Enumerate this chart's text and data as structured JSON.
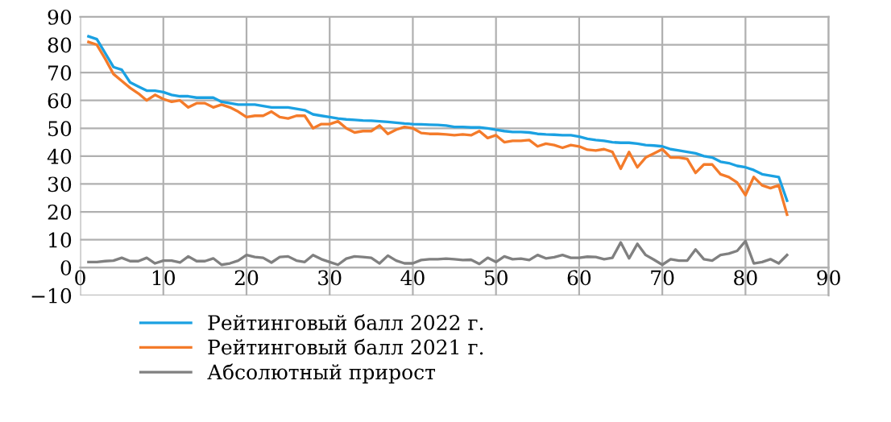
{
  "chart_data": {
    "type": "line",
    "x": [
      1,
      2,
      3,
      4,
      5,
      6,
      7,
      8,
      9,
      10,
      11,
      12,
      13,
      14,
      15,
      16,
      17,
      18,
      19,
      20,
      21,
      22,
      23,
      24,
      25,
      26,
      27,
      28,
      29,
      30,
      31,
      32,
      33,
      34,
      35,
      36,
      37,
      38,
      39,
      40,
      41,
      42,
      43,
      44,
      45,
      46,
      47,
      48,
      49,
      50,
      51,
      52,
      53,
      54,
      55,
      56,
      57,
      58,
      59,
      60,
      61,
      62,
      63,
      64,
      65,
      66,
      67,
      68,
      69,
      70,
      71,
      72,
      73,
      74,
      75,
      76,
      77,
      78,
      79,
      80,
      81,
      82,
      83,
      84,
      85
    ],
    "series": [
      {
        "name": "Рейтинговый балл 2022 г.",
        "color": "#1ba1e2",
        "values": [
          83,
          82,
          77,
          72,
          71,
          66.5,
          65,
          63.5,
          63.5,
          63,
          62,
          61.5,
          61.5,
          61,
          61,
          61,
          59.5,
          59,
          58.5,
          58.5,
          58.5,
          58,
          57.5,
          57.5,
          57.5,
          57,
          56.5,
          55,
          54.5,
          54,
          53.5,
          53.2,
          53,
          52.8,
          52.7,
          52.5,
          52.3,
          52,
          51.7,
          51.5,
          51.4,
          51.3,
          51.2,
          51,
          50.5,
          50.5,
          50.3,
          50.3,
          50,
          49.5,
          49,
          48.7,
          48.7,
          48.5,
          48,
          47.8,
          47.7,
          47.5,
          47.5,
          47,
          46.2,
          45.8,
          45.5,
          45,
          44.8,
          44.8,
          44.5,
          44,
          43.8,
          43.5,
          42.5,
          42,
          41.5,
          41,
          40,
          39.5,
          38,
          37.5,
          36.5,
          36,
          35,
          33.5,
          33,
          32.5,
          24
        ]
      },
      {
        "name": "Рейтинговый балл 2021 г.",
        "color": "#f47b2a",
        "values": [
          81,
          80,
          75,
          69.5,
          67,
          64.5,
          62.5,
          60,
          62,
          60.5,
          59.5,
          60,
          57.5,
          59,
          59,
          57.5,
          58.5,
          57.5,
          56,
          54,
          54.5,
          54.5,
          56,
          54,
          53.5,
          54.5,
          54.5,
          50,
          51.5,
          51.5,
          52.5,
          50,
          48.5,
          49,
          49,
          51,
          48,
          49.5,
          50.5,
          50,
          48.3,
          48,
          48,
          47.8,
          47.5,
          47.8,
          47.5,
          49,
          46.5,
          47.5,
          45,
          45.5,
          45.5,
          45.8,
          43.5,
          44.5,
          44,
          43,
          44,
          43.5,
          42.3,
          42,
          42.5,
          41.5,
          35.5,
          41.5,
          36,
          39.5,
          41,
          42.5,
          39.5,
          39.5,
          39,
          34,
          37,
          37,
          33.5,
          32.5,
          30.5,
          26,
          32.5,
          29.5,
          28.5,
          29.5,
          19
        ]
      },
      {
        "name": "Абсолютный прирост",
        "color": "#808080",
        "values": [
          2,
          2,
          2.3,
          2.5,
          3.5,
          2.3,
          2.3,
          3.5,
          1.5,
          2.5,
          2.5,
          1.8,
          4,
          2.3,
          2.3,
          3.3,
          1,
          1.5,
          2.5,
          4.5,
          3.8,
          3.5,
          1.8,
          3.8,
          4,
          2.5,
          2,
          4.5,
          3,
          2,
          1,
          3.2,
          4,
          3.8,
          3.5,
          1.5,
          4.3,
          2.5,
          1.5,
          1.5,
          2.7,
          3,
          3,
          3.2,
          3,
          2.7,
          2.8,
          1.3,
          3.5,
          2,
          4,
          3,
          3.2,
          2.7,
          4.5,
          3.3,
          3.7,
          4.5,
          3.5,
          3.5,
          3.9,
          3.8,
          3,
          3.5,
          9,
          3.3,
          8.5,
          4.5,
          2.8,
          1,
          3,
          2.5,
          2.5,
          6.5,
          3,
          2.5,
          4.5,
          5,
          6,
          9.5,
          1.5,
          2,
          3,
          1.5,
          4.5
        ]
      }
    ],
    "xlim": [
      0,
      90
    ],
    "xticks": [
      0,
      10,
      20,
      30,
      40,
      50,
      60,
      70,
      80,
      90
    ],
    "ylim": [
      -10,
      90
    ],
    "yticks": [
      -10,
      0,
      10,
      20,
      30,
      40,
      50,
      60,
      70,
      80,
      90
    ],
    "grid": true,
    "legend": "bottom",
    "marker": "none",
    "line_style": "solid"
  }
}
